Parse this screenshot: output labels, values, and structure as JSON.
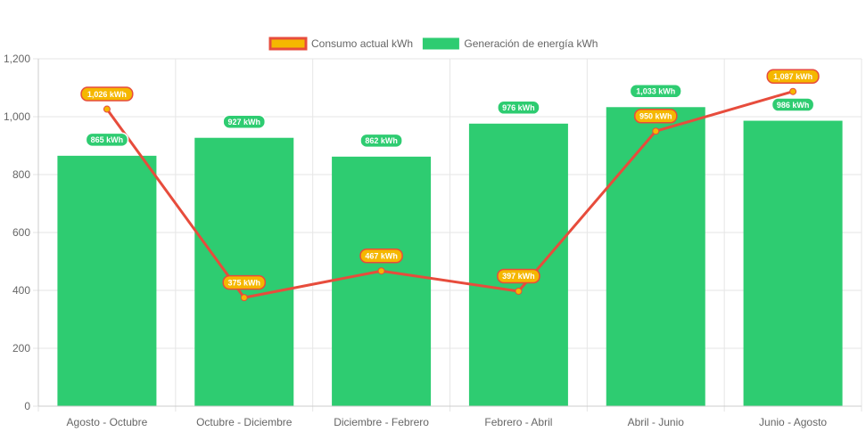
{
  "chart_data": {
    "type": "bar",
    "categories": [
      "Agosto - Octubre",
      "Octubre - Diciembre",
      "Diciembre - Febrero",
      "Febrero - Abril",
      "Abril - Junio",
      "Junio - Agosto"
    ],
    "series": [
      {
        "name": "Generación de energía kWh",
        "type": "bar",
        "color": "#2ecc71",
        "values": [
          865,
          927,
          862,
          976,
          1033,
          986
        ],
        "labels": [
          "865 kWh",
          "927 kWh",
          "862 kWh",
          "976 kWh",
          "1,033 kWh",
          "986 kWh"
        ]
      },
      {
        "name": "Consumo actual kWh",
        "type": "line",
        "color": "#e74c3c",
        "point_color": "#f5b700",
        "values": [
          1026,
          375,
          467,
          397,
          950,
          1087
        ],
        "labels": [
          "1,026 kWh",
          "375 kWh",
          "467 kWh",
          "397 kWh",
          "950 kWh",
          "1,087 kWh"
        ]
      }
    ],
    "ylim": [
      0,
      1200
    ],
    "y_ticks": [
      "0",
      "200",
      "400",
      "600",
      "800",
      "1,000",
      "1,200"
    ],
    "y_tick_values": [
      0,
      200,
      400,
      600,
      800,
      1000,
      1200
    ],
    "legend": [
      "Consumo actual kWh",
      "Generación de energía kWh"
    ],
    "legend_position": "top",
    "grid": true
  }
}
